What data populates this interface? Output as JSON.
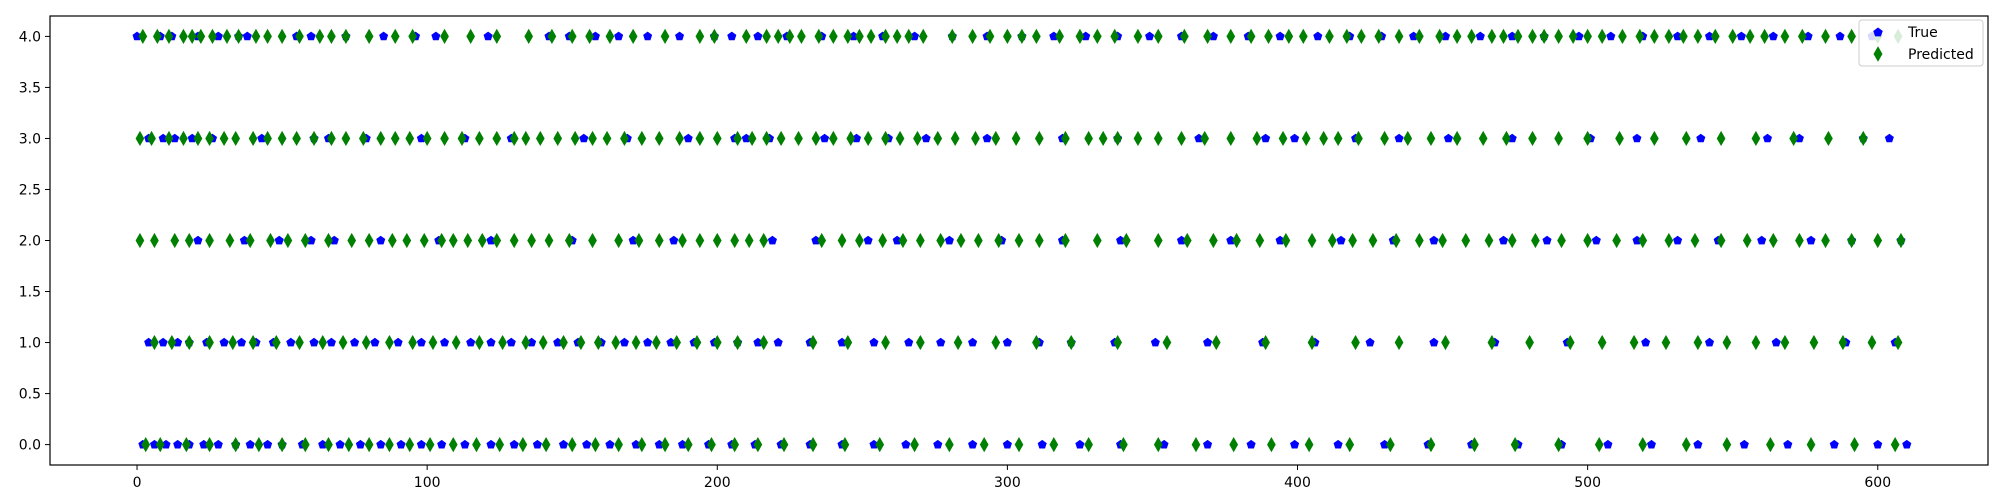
{
  "chart_data": {
    "type": "scatter",
    "title": "",
    "xlabel": "",
    "ylabel": "",
    "xlim": [
      -30,
      638
    ],
    "ylim": [
      -0.2,
      4.2
    ],
    "xticks": [
      0,
      100,
      200,
      300,
      400,
      500,
      600
    ],
    "yticks": [
      0.0,
      0.5,
      1.0,
      1.5,
      2.0,
      2.5,
      3.0,
      3.5,
      4.0
    ],
    "ytick_labels": [
      "0.0",
      "0.5",
      "1.0",
      "1.5",
      "2.0",
      "2.5",
      "3.0",
      "3.5",
      "4.0"
    ],
    "grid": false,
    "legend_position": "top-right",
    "series": [
      {
        "name": "True",
        "marker": "pentagon",
        "color": "#0000ff",
        "points": [
          {
            "level": 4,
            "x": [
              0,
              8,
              12,
              21,
              28,
              35,
              38,
              55,
              60,
              72,
              85,
              96,
              103,
              121,
              142,
              149,
              158,
              166,
              176,
              187,
              199,
              205,
              214,
              224,
              236,
              247,
              257,
              268,
              281,
              293,
              305,
              316,
              327,
              338,
              349,
              360,
              371,
              383,
              394,
              407,
              418,
              429,
              440,
              451,
              463,
              474,
              485,
              497,
              508,
              519,
              531,
              542,
              553,
              564,
              576,
              587,
              598
            ]
          },
          {
            "level": 3,
            "x": [
              4,
              9,
              13,
              19,
              26,
              43,
              61,
              66,
              79,
              98,
              113,
              129,
              154,
              169,
              190,
              206,
              210,
              218,
              237,
              248,
              259,
              272,
              293,
              319,
              338,
              366,
              389,
              399,
              420,
              435,
              452,
              474,
              501,
              517,
              539,
              562,
              573,
              595,
              604
            ]
          },
          {
            "level": 2,
            "x": [
              21,
              37,
              49,
              60,
              68,
              84,
              104,
              122,
              150,
              171,
              185,
              219,
              234,
              252,
              262,
              280,
              298,
              319,
              339,
              360,
              377,
              394,
              415,
              433,
              447,
              471,
              486,
              503,
              517,
              531,
              545,
              560,
              577,
              591,
              608
            ]
          },
          {
            "level": 1,
            "x": [
              4,
              9,
              14,
              18,
              24,
              30,
              36,
              41,
              47,
              53,
              61,
              67,
              75,
              82,
              90,
              98,
              106,
              115,
              122,
              129,
              136,
              145,
              152,
              160,
              168,
              176,
              184,
              192,
              199,
              207,
              214,
              221,
              232,
              243,
              254,
              266,
              277,
              288,
              300,
              311,
              322,
              337,
              351,
              369,
              388,
              406,
              425,
              447,
              468,
              493,
              520,
              542,
              565,
              589,
              606
            ]
          },
          {
            "level": 0,
            "x": [
              2,
              6,
              10,
              14,
              18,
              23,
              28,
              34,
              39,
              45,
              50,
              57,
              64,
              70,
              77,
              84,
              91,
              98,
              105,
              113,
              122,
              130,
              138,
              147,
              155,
              163,
              172,
              180,
              188,
              197,
              205,
              213,
              222,
              232,
              243,
              254,
              265,
              276,
              288,
              300,
              312,
              325,
              339,
              354,
              369,
              384,
              399,
              414,
              430,
              445,
              460,
              476,
              491,
              507,
              522,
              538,
              554,
              569,
              585,
              600,
              610
            ]
          }
        ]
      },
      {
        "name": "Predicted",
        "marker": "thin_diamond",
        "color": "#008000",
        "points": [
          {
            "level": 4,
            "x": [
              2,
              7,
              11,
              16,
              19,
              22,
              26,
              31,
              35,
              41,
              45,
              50,
              56,
              63,
              67,
              72,
              80,
              89,
              95,
              106,
              115,
              124,
              135,
              143,
              150,
              156,
              163,
              171,
              182,
              194,
              199,
              210,
              217,
              221,
              225,
              229,
              235,
              240,
              245,
              249,
              253,
              258,
              262,
              266,
              271,
              281,
              288,
              294,
              300,
              305,
              310,
              318,
              325,
              331,
              337,
              345,
              352,
              361,
              369,
              377,
              384,
              390,
              397,
              402,
              411,
              417,
              422,
              428,
              435,
              442,
              449,
              455,
              460,
              467,
              471,
              476,
              481,
              485,
              490,
              495,
              500,
              505,
              512,
              518,
              523,
              528,
              533,
              538,
              544,
              550,
              556,
              561,
              568,
              574,
              582,
              591,
              600,
              607
            ]
          },
          {
            "level": 3,
            "x": [
              1,
              5,
              11,
              16,
              21,
              25,
              30,
              34,
              40,
              45,
              50,
              55,
              61,
              67,
              72,
              78,
              84,
              89,
              94,
              100,
              106,
              112,
              118,
              124,
              130,
              134,
              139,
              145,
              151,
              157,
              162,
              168,
              174,
              180,
              187,
              194,
              200,
              207,
              212,
              217,
              222,
              228,
              234,
              240,
              246,
              252,
              258,
              263,
              269,
              276,
              282,
              289,
              296,
              303,
              311,
              320,
              328,
              333,
              338,
              345,
              352,
              360,
              368,
              377,
              386,
              395,
              403,
              409,
              414,
              421,
              430,
              438,
              446,
              455,
              464,
              472,
              481,
              490,
              500,
              511,
              523,
              534,
              546,
              558,
              571,
              583,
              595
            ]
          },
          {
            "level": 2,
            "x": [
              1,
              6,
              13,
              18,
              25,
              32,
              39,
              46,
              52,
              58,
              66,
              74,
              80,
              88,
              93,
              99,
              105,
              109,
              114,
              119,
              124,
              130,
              136,
              142,
              149,
              157,
              166,
              173,
              180,
              188,
              194,
              200,
              206,
              211,
              216,
              236,
              243,
              249,
              257,
              264,
              270,
              277,
              284,
              290,
              297,
              304,
              311,
              320,
              331,
              341,
              352,
              362,
              371,
              379,
              387,
              396,
              405,
              412,
              419,
              426,
              434,
              442,
              450,
              458,
              466,
              474,
              482,
              491,
              500,
              510,
              519,
              528,
              537,
              546,
              555,
              564,
              573,
              582,
              591,
              600,
              608
            ]
          },
          {
            "level": 1,
            "x": [
              6,
              12,
              18,
              25,
              33,
              40,
              48,
              56,
              64,
              71,
              79,
              87,
              95,
              102,
              110,
              118,
              126,
              134,
              140,
              147,
              153,
              159,
              165,
              172,
              179,
              186,
              193,
              200,
              207,
              216,
              233,
              245,
              258,
              270,
              283,
              296,
              310,
              322,
              338,
              355,
              372,
              389,
              405,
              420,
              435,
              451,
              467,
              480,
              494,
              505,
              516,
              527,
              538,
              548,
              558,
              568,
              578,
              588,
              598,
              607
            ]
          },
          {
            "level": 0,
            "x": [
              3,
              8,
              17,
              25,
              34,
              42,
              50,
              58,
              66,
              73,
              80,
              87,
              94,
              101,
              109,
              117,
              125,
              133,
              141,
              150,
              158,
              166,
              174,
              182,
              190,
              198,
              206,
              214,
              223,
              233,
              244,
              256,
              268,
              280,
              292,
              304,
              316,
              328,
              340,
              352,
              365,
              378,
              391,
              404,
              418,
              432,
              446,
              461,
              475,
              490,
              504,
              519,
              534,
              548,
              563,
              577,
              592,
              606
            ]
          }
        ]
      }
    ]
  }
}
